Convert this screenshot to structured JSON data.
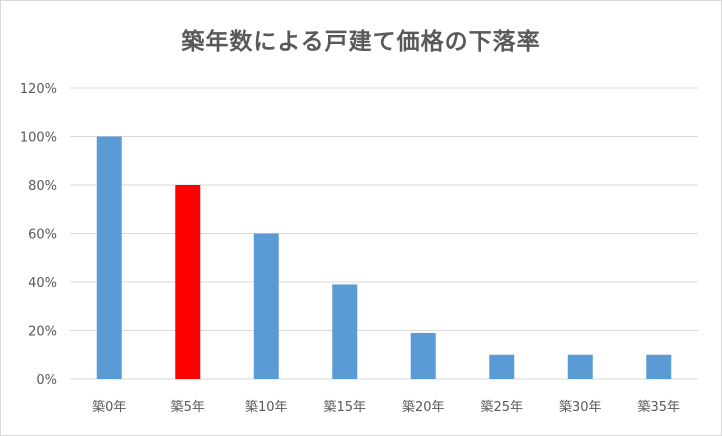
{
  "chart_data": {
    "type": "bar",
    "title": "築年数による戸建て価格の下落率",
    "xlabel": "",
    "ylabel": "",
    "categories": [
      "築0年",
      "築5年",
      "築10年",
      "築15年",
      "築20年",
      "築25年",
      "築30年",
      "築35年"
    ],
    "values": [
      100,
      80,
      60,
      39,
      19,
      10,
      10,
      10
    ],
    "unit": "%",
    "ylim": [
      0,
      120
    ],
    "yticks": [
      "0%",
      "20%",
      "40%",
      "60%",
      "80%",
      "100%",
      "120%"
    ],
    "grid": true,
    "legend": "none",
    "colors": {
      "default_bar": "#5b9bd5",
      "highlight_bar": "#ff0000",
      "highlight_category": "築5年",
      "gridline": "#d9d9d9",
      "text": "#595959"
    }
  }
}
